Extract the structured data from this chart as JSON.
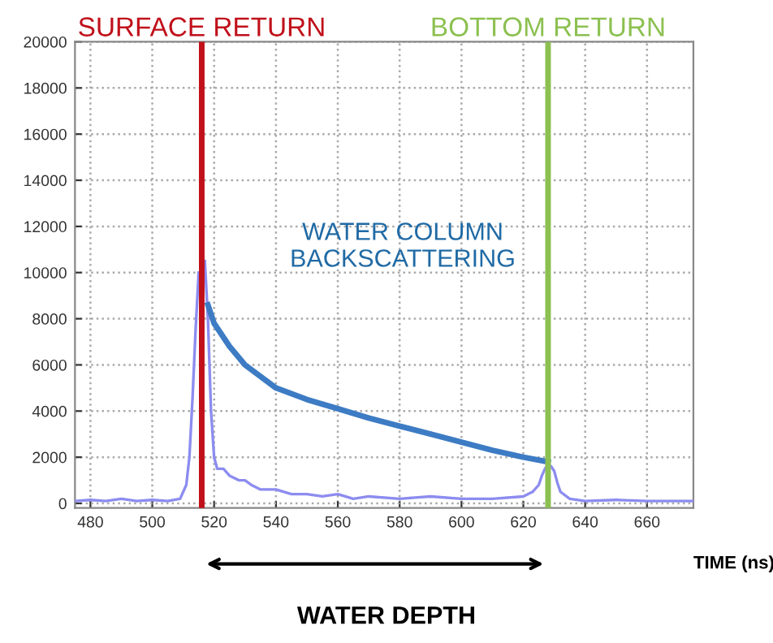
{
  "chart_data": {
    "type": "line",
    "xlabel": "TIME (ns)",
    "xlim": [
      475,
      675
    ],
    "xticks": [
      480,
      500,
      520,
      540,
      560,
      580,
      600,
      620,
      640,
      660
    ],
    "ylim": [
      -200,
      20000
    ],
    "yticks": [
      0,
      2000,
      4000,
      6000,
      8000,
      10000,
      12000,
      14000,
      16000,
      18000,
      20000
    ],
    "grid": true,
    "marker": "none",
    "line_style": "solid",
    "series": [
      {
        "color": "#8c8cf0",
        "x": [
          475,
          480,
          485,
          490,
          495,
          500,
          505,
          509,
          511,
          512,
          513,
          514,
          515,
          516,
          517,
          518,
          519,
          520,
          521,
          523,
          525,
          528,
          530,
          532,
          535,
          540,
          545,
          550,
          555,
          560,
          565,
          570,
          580,
          590,
          600,
          610,
          620,
          623,
          625,
          626,
          627,
          628,
          629,
          630,
          631,
          632,
          635,
          640,
          650,
          660,
          675
        ],
        "values": [
          100,
          150,
          100,
          200,
          100,
          150,
          100,
          200,
          800,
          2000,
          4500,
          7500,
          10000,
          null,
          10500,
          8000,
          4000,
          2000,
          1500,
          1500,
          1200,
          1000,
          1000,
          800,
          600,
          600,
          400,
          400,
          300,
          400,
          200,
          300,
          200,
          300,
          200,
          200,
          300,
          500,
          800,
          1200,
          1500,
          1700,
          1600,
          1400,
          900,
          500,
          200,
          100,
          150,
          100,
          100
        ]
      },
      {
        "color": "#3d7cc4",
        "x": [
          518,
          520,
          525,
          530,
          540,
          550,
          560,
          570,
          580,
          590,
          600,
          610,
          620,
          628
        ],
        "values": [
          8600,
          7800,
          6800,
          6000,
          5000,
          4500,
          4100,
          3700,
          3350,
          3000,
          2650,
          2300,
          2000,
          1800
        ]
      }
    ],
    "ref_lines": [
      {
        "axis": "x",
        "value": 516,
        "label": "SURFACE RETURN",
        "color": "#c0101a"
      },
      {
        "axis": "x",
        "value": 628,
        "label": "BOTTOM RETURN",
        "color": "#8cc050"
      }
    ],
    "annotations": [
      "WATER COLUMN BACKSCATTERING",
      "WATER DEPTH"
    ]
  }
}
